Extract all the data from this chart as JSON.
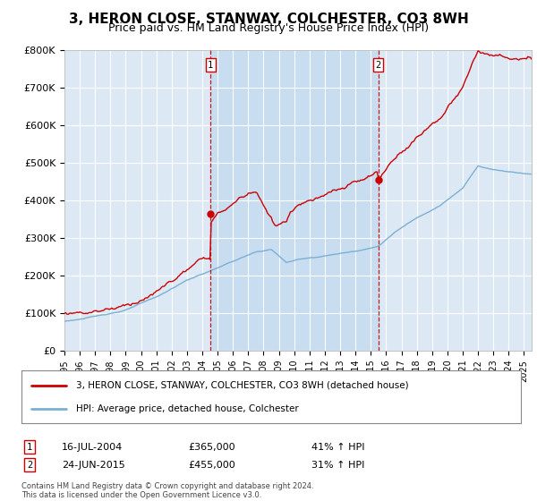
{
  "title": "3, HERON CLOSE, STANWAY, COLCHESTER, CO3 8WH",
  "subtitle": "Price paid vs. HM Land Registry's House Price Index (HPI)",
  "ylabel_ticks": [
    "£0",
    "£100K",
    "£200K",
    "£300K",
    "£400K",
    "£500K",
    "£600K",
    "£700K",
    "£800K"
  ],
  "ytick_values": [
    0,
    100000,
    200000,
    300000,
    400000,
    500000,
    600000,
    700000,
    800000
  ],
  "ylim": [
    0,
    800000
  ],
  "xlim_start": 1995.0,
  "xlim_end": 2025.5,
  "background_color": "#dce9f5",
  "shade_color": "#c8ddf0",
  "grid_color": "#ffffff",
  "sale1_x": 2004.54,
  "sale1_y": 365000,
  "sale2_x": 2015.48,
  "sale2_y": 455000,
  "sale1_label": "1",
  "sale2_label": "2",
  "legend_line1": "3, HERON CLOSE, STANWAY, COLCHESTER, CO3 8WH (detached house)",
  "legend_line2": "HPI: Average price, detached house, Colchester",
  "footer": "Contains HM Land Registry data © Crown copyright and database right 2024.\nThis data is licensed under the Open Government Licence v3.0.",
  "red_color": "#cc0000",
  "blue_color": "#7bafd4",
  "title_fontsize": 11,
  "subtitle_fontsize": 9
}
